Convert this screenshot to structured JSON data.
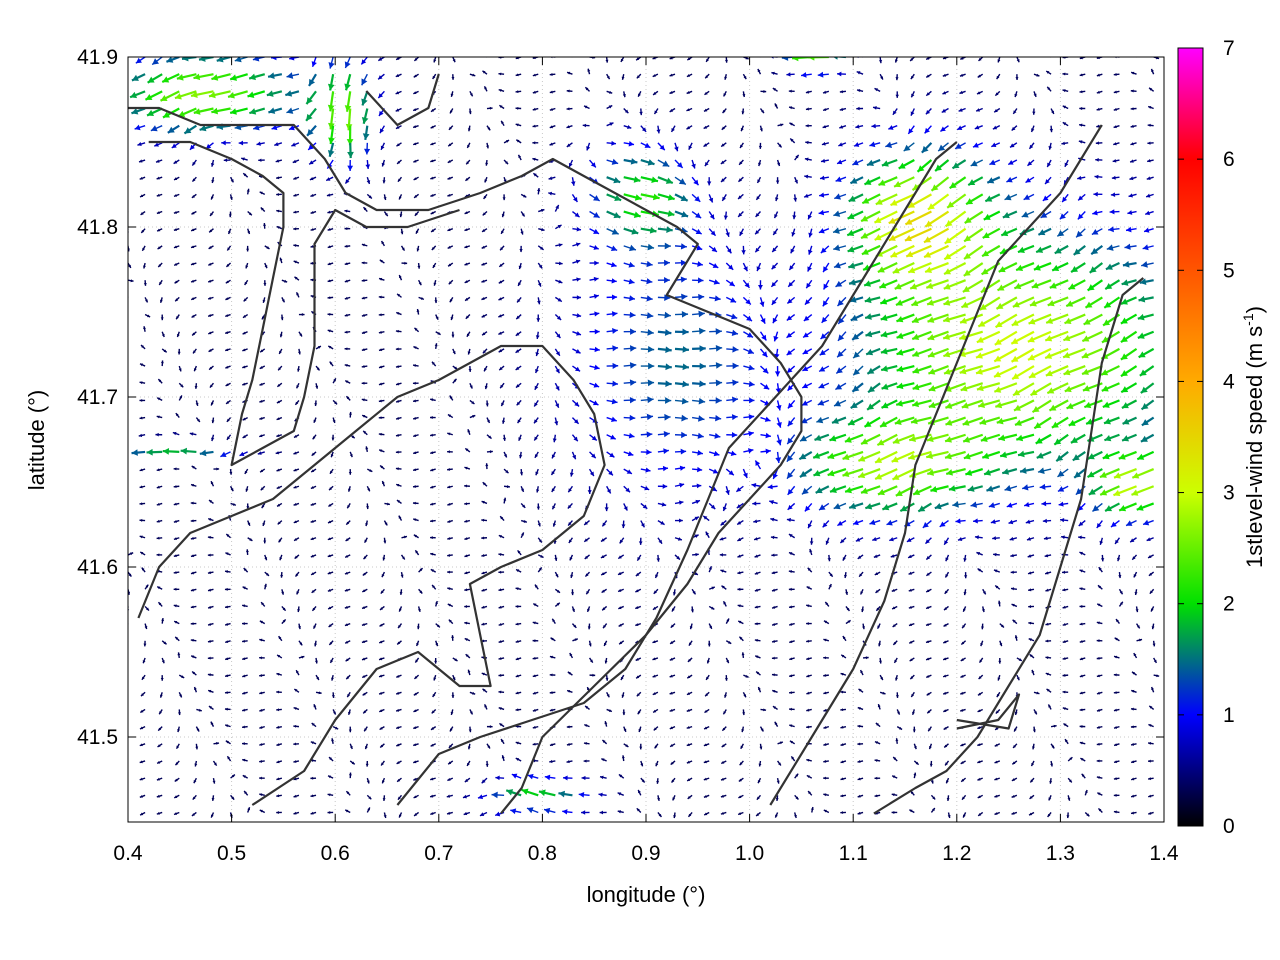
{
  "chart_data": {
    "type": "vector-field",
    "xlabel": "longitude (°)",
    "ylabel": "latitude (°)",
    "xlim": [
      0.4,
      1.4
    ],
    "ylim": [
      41.45,
      41.9
    ],
    "xticks": [
      {
        "v": 0.4,
        "label": "0.4"
      },
      {
        "v": 0.5,
        "label": "0.5"
      },
      {
        "v": 0.6,
        "label": "0.6"
      },
      {
        "v": 0.7,
        "label": "0.7"
      },
      {
        "v": 0.8,
        "label": "0.8"
      },
      {
        "v": 0.9,
        "label": "0.9"
      },
      {
        "v": 1.0,
        "label": "1.0"
      },
      {
        "v": 1.1,
        "label": "1.1"
      },
      {
        "v": 1.2,
        "label": "1.2"
      },
      {
        "v": 1.3,
        "label": "1.3"
      },
      {
        "v": 1.4,
        "label": "1.4"
      }
    ],
    "yticks": [
      {
        "v": 41.5,
        "label": "41.5"
      },
      {
        "v": 41.6,
        "label": "41.6"
      },
      {
        "v": 41.7,
        "label": "41.7"
      },
      {
        "v": 41.8,
        "label": "41.8"
      },
      {
        "v": 41.9,
        "label": "41.9"
      }
    ],
    "grid": true,
    "colorbar": {
      "label": "1stlevel-wind speed (m s",
      "label_sup": "-1",
      "label_close": ")",
      "range": [
        0,
        7
      ],
      "ticks": [
        {
          "v": 0,
          "label": "0"
        },
        {
          "v": 1,
          "label": "1"
        },
        {
          "v": 2,
          "label": "2"
        },
        {
          "v": 3,
          "label": "3"
        },
        {
          "v": 4,
          "label": "4"
        },
        {
          "v": 5,
          "label": "5"
        },
        {
          "v": 6,
          "label": "6"
        },
        {
          "v": 7,
          "label": "7"
        }
      ],
      "stops": [
        {
          "v": 0,
          "color": "#000000"
        },
        {
          "v": 1,
          "color": "#0000ff"
        },
        {
          "v": 2,
          "color": "#00e000"
        },
        {
          "v": 3,
          "color": "#ccff00"
        },
        {
          "v": 4,
          "color": "#ffaa00"
        },
        {
          "v": 5,
          "color": "#ff5500"
        },
        {
          "v": 6,
          "color": "#ff0000"
        },
        {
          "v": 7,
          "color": "#ff00ff"
        }
      ]
    },
    "wind_field": {
      "lon_step": 0.0165,
      "lat_step": 0.0101,
      "base_speed": 0.35,
      "jets": [
        {
          "lon": 1.27,
          "lat": 41.73,
          "rlon": 0.16,
          "rlat": 0.07,
          "speed": 2.7,
          "dir": [
            -1,
            -0.4
          ]
        },
        {
          "lon": 1.17,
          "lat": 41.81,
          "rlon": 0.07,
          "rlat": 0.04,
          "speed": 2.6,
          "dir": [
            -1,
            -0.6
          ]
        },
        {
          "lon": 1.14,
          "lat": 41.66,
          "rlon": 0.09,
          "rlat": 0.03,
          "speed": 2.0,
          "dir": [
            -1,
            -0.3
          ]
        },
        {
          "lon": 1.38,
          "lat": 41.65,
          "rlon": 0.04,
          "rlat": 0.02,
          "speed": 2.2,
          "dir": [
            -1,
            -0.4
          ]
        },
        {
          "lon": 0.48,
          "lat": 41.88,
          "rlon": 0.09,
          "rlat": 0.025,
          "speed": 2.3,
          "dir": [
            -1,
            -0.3
          ]
        },
        {
          "lon": 0.61,
          "lat": 41.87,
          "rlon": 0.03,
          "rlat": 0.03,
          "speed": 2.0,
          "dir": [
            0.0,
            -1
          ]
        },
        {
          "lon": 0.89,
          "lat": 41.82,
          "rlon": 0.05,
          "rlat": 0.03,
          "speed": 1.6,
          "dir": [
            1,
            -0.3
          ]
        },
        {
          "lon": 1.07,
          "lat": 41.9,
          "rlon": 0.03,
          "rlat": 0.01,
          "speed": 2.1,
          "dir": [
            -1,
            0
          ]
        },
        {
          "lon": 0.45,
          "lat": 41.67,
          "rlon": 0.06,
          "rlat": 0.005,
          "speed": 1.8,
          "dir": [
            -1,
            0
          ]
        },
        {
          "lon": 0.8,
          "lat": 41.465,
          "rlon": 0.05,
          "rlat": 0.012,
          "speed": 1.6,
          "dir": [
            -1,
            0.3
          ]
        },
        {
          "lon": 0.92,
          "lat": 41.72,
          "rlon": 0.1,
          "rlat": 0.08,
          "speed": 1.1,
          "dir": [
            1,
            0
          ]
        }
      ]
    },
    "contours": [
      [
        [
          0.4,
          41.87
        ],
        [
          0.43,
          41.87
        ],
        [
          0.47,
          41.86
        ],
        [
          0.52,
          41.86
        ],
        [
          0.56,
          41.86
        ],
        [
          0.59,
          41.84
        ],
        [
          0.61,
          41.82
        ],
        [
          0.64,
          41.81
        ],
        [
          0.69,
          41.81
        ],
        [
          0.74,
          41.82
        ],
        [
          0.78,
          41.83
        ],
        [
          0.81,
          41.84
        ],
        [
          0.84,
          41.83
        ],
        [
          0.87,
          41.82
        ],
        [
          0.9,
          41.81
        ],
        [
          0.93,
          41.8
        ],
        [
          0.95,
          41.79
        ],
        [
          0.93,
          41.77
        ],
        [
          0.92,
          41.76
        ],
        [
          0.96,
          41.75
        ],
        [
          1.0,
          41.74
        ],
        [
          1.03,
          41.72
        ],
        [
          1.05,
          41.7
        ],
        [
          1.05,
          41.68
        ],
        [
          1.03,
          41.66
        ],
        [
          1.0,
          41.64
        ],
        [
          0.97,
          41.62
        ],
        [
          0.94,
          41.59
        ],
        [
          0.9,
          41.56
        ],
        [
          0.85,
          41.53
        ],
        [
          0.8,
          41.5
        ],
        [
          0.78,
          41.47
        ],
        [
          0.76,
          41.455
        ]
      ],
      [
        [
          0.42,
          41.85
        ],
        [
          0.46,
          41.85
        ],
        [
          0.5,
          41.84
        ],
        [
          0.53,
          41.83
        ],
        [
          0.55,
          41.82
        ],
        [
          0.55,
          41.8
        ],
        [
          0.54,
          41.77
        ],
        [
          0.53,
          41.74
        ],
        [
          0.52,
          41.71
        ],
        [
          0.51,
          41.69
        ],
        [
          0.5,
          41.66
        ],
        [
          0.53,
          41.67
        ],
        [
          0.56,
          41.68
        ],
        [
          0.57,
          41.7
        ],
        [
          0.58,
          41.73
        ],
        [
          0.58,
          41.76
        ],
        [
          0.58,
          41.79
        ],
        [
          0.6,
          41.81
        ],
        [
          0.63,
          41.8
        ],
        [
          0.67,
          41.8
        ],
        [
          0.72,
          41.81
        ]
      ],
      [
        [
          0.41,
          41.57
        ],
        [
          0.43,
          41.6
        ],
        [
          0.46,
          41.62
        ],
        [
          0.5,
          41.63
        ],
        [
          0.54,
          41.64
        ],
        [
          0.58,
          41.66
        ],
        [
          0.62,
          41.68
        ],
        [
          0.66,
          41.7
        ],
        [
          0.7,
          41.71
        ],
        [
          0.73,
          41.72
        ],
        [
          0.76,
          41.73
        ],
        [
          0.8,
          41.73
        ],
        [
          0.83,
          41.71
        ],
        [
          0.85,
          41.69
        ],
        [
          0.86,
          41.66
        ],
        [
          0.84,
          41.63
        ],
        [
          0.8,
          41.61
        ],
        [
          0.76,
          41.6
        ],
        [
          0.73,
          41.59
        ],
        [
          0.74,
          41.56
        ],
        [
          0.75,
          41.53
        ],
        [
          0.72,
          41.53
        ],
        [
          0.68,
          41.55
        ],
        [
          0.64,
          41.54
        ],
        [
          0.6,
          41.51
        ],
        [
          0.57,
          41.48
        ],
        [
          0.52,
          41.46
        ]
      ],
      [
        [
          0.66,
          41.46
        ],
        [
          0.7,
          41.49
        ],
        [
          0.74,
          41.5
        ],
        [
          0.79,
          41.51
        ],
        [
          0.84,
          41.52
        ],
        [
          0.88,
          41.54
        ],
        [
          0.91,
          41.57
        ],
        [
          0.94,
          41.61
        ],
        [
          0.96,
          41.64
        ],
        [
          0.98,
          41.67
        ],
        [
          1.01,
          41.69
        ],
        [
          1.04,
          41.71
        ],
        [
          1.07,
          41.73
        ],
        [
          1.11,
          41.77
        ],
        [
          1.15,
          41.81
        ],
        [
          1.18,
          41.84
        ],
        [
          1.2,
          41.85
        ]
      ],
      [
        [
          1.02,
          41.46
        ],
        [
          1.06,
          41.5
        ],
        [
          1.1,
          41.54
        ],
        [
          1.13,
          41.58
        ],
        [
          1.15,
          41.62
        ],
        [
          1.16,
          41.66
        ],
        [
          1.18,
          41.69
        ],
        [
          1.2,
          41.72
        ],
        [
          1.22,
          41.75
        ],
        [
          1.24,
          41.78
        ],
        [
          1.27,
          41.8
        ],
        [
          1.3,
          41.82
        ],
        [
          1.34,
          41.86
        ]
      ],
      [
        [
          1.12,
          41.455
        ],
        [
          1.16,
          41.47
        ],
        [
          1.19,
          41.48
        ],
        [
          1.22,
          41.5
        ],
        [
          1.25,
          41.53
        ],
        [
          1.28,
          41.56
        ],
        [
          1.3,
          41.6
        ],
        [
          1.32,
          41.64
        ],
        [
          1.33,
          41.68
        ],
        [
          1.34,
          41.72
        ],
        [
          1.36,
          41.76
        ],
        [
          1.38,
          41.77
        ]
      ],
      [
        [
          1.2,
          41.51
        ],
        [
          1.25,
          41.505
        ],
        [
          1.26,
          41.525
        ],
        [
          1.24,
          41.51
        ],
        [
          1.2,
          41.505
        ]
      ],
      [
        [
          0.63,
          41.88
        ],
        [
          0.66,
          41.86
        ],
        [
          0.69,
          41.87
        ],
        [
          0.7,
          41.89
        ]
      ]
    ]
  }
}
